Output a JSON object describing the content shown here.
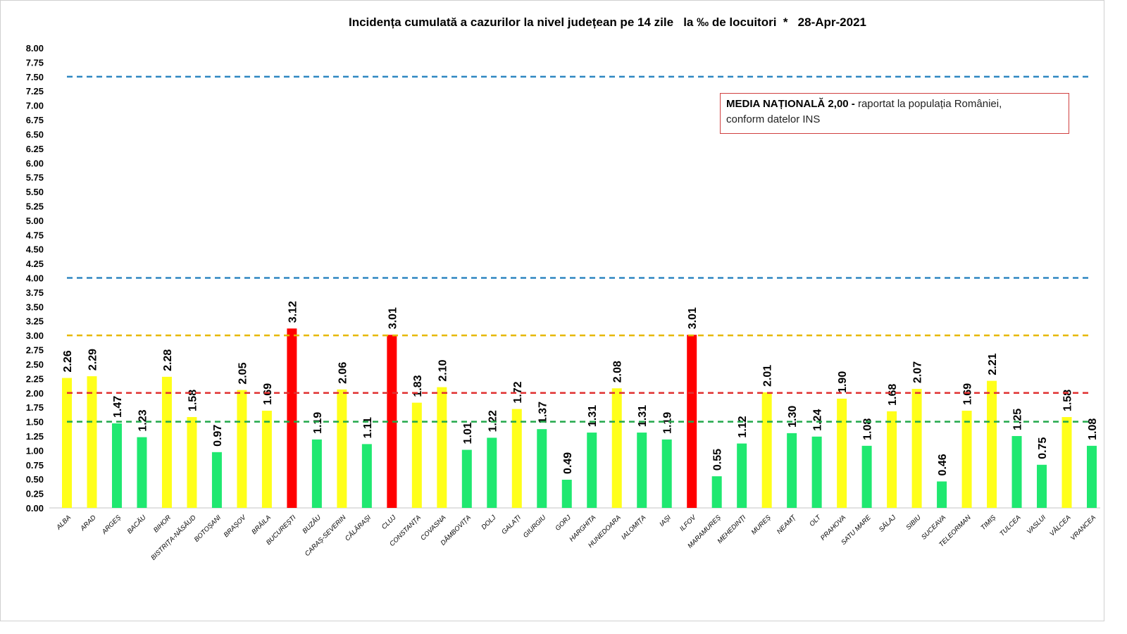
{
  "chart_data": {
    "type": "bar",
    "title": "Incidența cumulată a cazurilor la nivel județean pe 14 zile   la ‰ de locuitori  *   28-Apr-2021",
    "xlabel": "",
    "ylabel": "",
    "ylim": [
      0,
      8
    ],
    "yticks": [
      "0.00",
      "0.25",
      "0.50",
      "0.75",
      "1.00",
      "1.25",
      "1.50",
      "1.75",
      "2.00",
      "2.25",
      "2.50",
      "2.75",
      "3.00",
      "3.25",
      "3.50",
      "3.75",
      "4.00",
      "4.25",
      "4.50",
      "4.75",
      "5.00",
      "5.25",
      "5.50",
      "5.75",
      "6.00",
      "6.25",
      "6.50",
      "6.75",
      "7.00",
      "7.25",
      "7.50",
      "7.75",
      "8.00"
    ],
    "grid": false,
    "categories": [
      "ALBA",
      "ARAD",
      "ARGEȘ",
      "BACĂU",
      "BIHOR",
      "BISTRIȚA-NĂSĂUD",
      "BOTOȘANI",
      "BRAȘOV",
      "BRĂILA",
      "BUCUREȘTI",
      "BUZĂU",
      "CARAȘ-SEVERIN",
      "CĂLĂRAȘI",
      "CLUJ",
      "CONSTANȚA",
      "COVASNA",
      "DÂMBOVIȚA",
      "DOLJ",
      "GALAȚI",
      "GIURGIU",
      "GORJ",
      "HARGHITA",
      "HUNEDOARA",
      "IALOMIȚA",
      "IAȘI",
      "ILFOV",
      "MARAMUREȘ",
      "MEHEDINȚI",
      "MUREȘ",
      "NEAMȚ",
      "OLT",
      "PRAHOVA",
      "SATU MARE",
      "SĂLAJ",
      "SIBIU",
      "SUCEAVA",
      "TELEORMAN",
      "TIMIȘ",
      "TULCEA",
      "VASLUI",
      "VÂLCEA",
      "VRANCEA"
    ],
    "values": [
      2.26,
      2.29,
      1.47,
      1.23,
      2.28,
      1.58,
      0.97,
      2.05,
      1.69,
      3.12,
      1.19,
      2.06,
      1.11,
      3.01,
      1.83,
      2.1,
      1.01,
      1.22,
      1.72,
      1.37,
      0.49,
      1.31,
      2.08,
      1.31,
      1.19,
      3.01,
      0.55,
      1.12,
      2.01,
      1.3,
      1.24,
      1.9,
      1.08,
      1.68,
      2.07,
      0.46,
      1.69,
      2.21,
      1.25,
      0.75,
      1.58,
      1.08
    ],
    "bar_colors": {
      "low": "#1fe870",
      "mid": "#ffff1a",
      "high": "#ff0000"
    },
    "color_thresholds": [
      1.5,
      3.0
    ],
    "reference_lines": [
      {
        "value": 7.5,
        "color": "#2e86c1"
      },
      {
        "value": 4.0,
        "color": "#2e86c1"
      },
      {
        "value": 3.0,
        "color": "#e6b800"
      },
      {
        "value": 2.0,
        "color": "#e03030"
      },
      {
        "value": 1.5,
        "color": "#22a84a"
      }
    ],
    "annotation": {
      "bold": "MEDIA NAȚIONALĂ 2,00 -",
      "text": " raportat la populația României,",
      "line2": "conform datelor INS"
    }
  }
}
